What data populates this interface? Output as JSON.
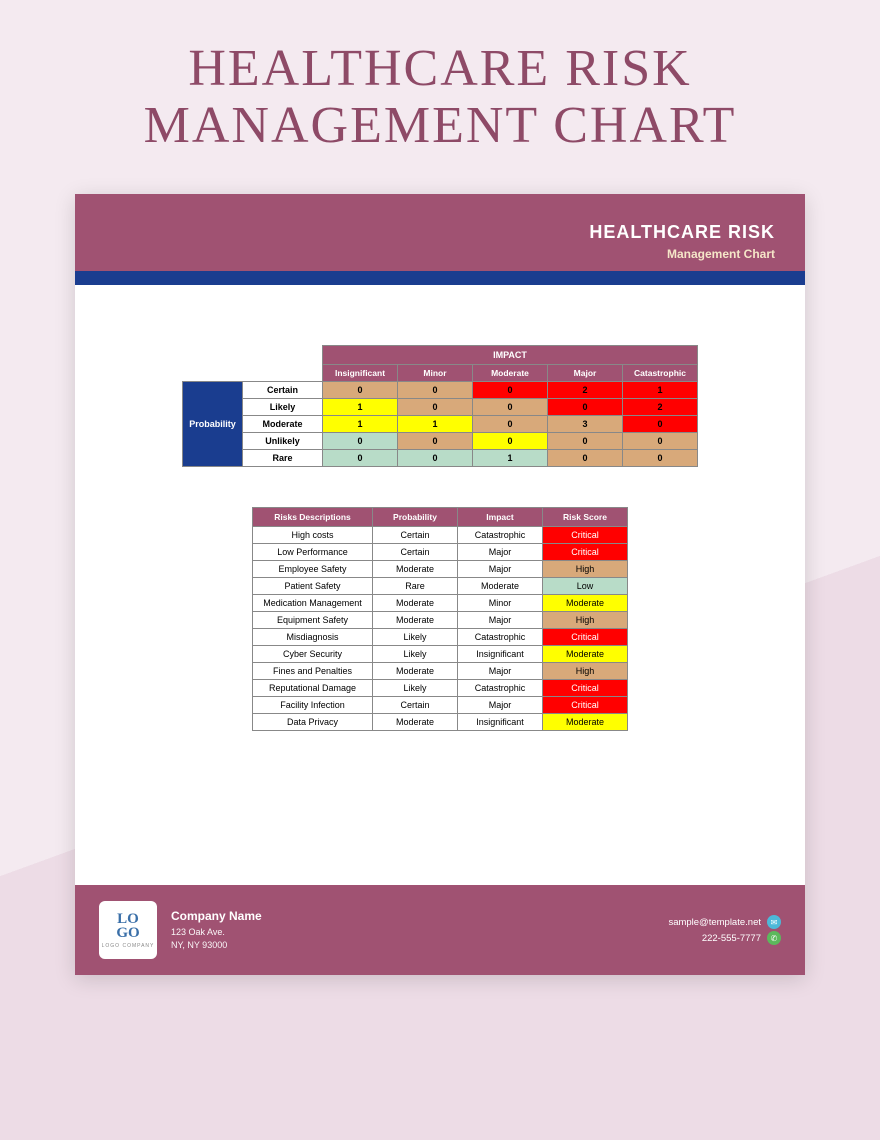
{
  "page": {
    "title": "HEALTHCARE RISK MANAGEMENT CHART"
  },
  "doc": {
    "header_title": "HEALTHCARE RISK",
    "header_subtitle": "Management Chart"
  },
  "colors": {
    "brand": "#a05272",
    "blue_bar": "#1a3d8f",
    "bg_light": "#f4eaf0",
    "bg_dark": "#eddce6"
  },
  "matrix": {
    "impact_label": "IMPACT",
    "probability_label": "Probability",
    "impact_columns": [
      "Insignificant",
      "Minor",
      "Moderate",
      "Major",
      "Catastrophic"
    ],
    "prob_rows": [
      "Certain",
      "Likely",
      "Moderate",
      "Unlikely",
      "Rare"
    ],
    "cells": [
      [
        {
          "v": "0",
          "c": "#d8a97a"
        },
        {
          "v": "0",
          "c": "#d8a97a"
        },
        {
          "v": "0",
          "c": "#ff0000"
        },
        {
          "v": "2",
          "c": "#ff0000"
        },
        {
          "v": "1",
          "c": "#ff0000"
        }
      ],
      [
        {
          "v": "1",
          "c": "#ffff00"
        },
        {
          "v": "0",
          "c": "#d8a97a"
        },
        {
          "v": "0",
          "c": "#d8a97a"
        },
        {
          "v": "0",
          "c": "#ff0000"
        },
        {
          "v": "2",
          "c": "#ff0000"
        }
      ],
      [
        {
          "v": "1",
          "c": "#ffff00"
        },
        {
          "v": "1",
          "c": "#ffff00"
        },
        {
          "v": "0",
          "c": "#d8a97a"
        },
        {
          "v": "3",
          "c": "#d8a97a"
        },
        {
          "v": "0",
          "c": "#ff0000"
        }
      ],
      [
        {
          "v": "0",
          "c": "#b8dcc8"
        },
        {
          "v": "0",
          "c": "#d8a97a"
        },
        {
          "v": "0",
          "c": "#ffff00"
        },
        {
          "v": "0",
          "c": "#d8a97a"
        },
        {
          "v": "0",
          "c": "#d8a97a"
        }
      ],
      [
        {
          "v": "0",
          "c": "#b8dcc8"
        },
        {
          "v": "0",
          "c": "#b8dcc8"
        },
        {
          "v": "1",
          "c": "#b8dcc8"
        },
        {
          "v": "0",
          "c": "#d8a97a"
        },
        {
          "v": "0",
          "c": "#d8a97a"
        }
      ]
    ]
  },
  "risks": {
    "headers": [
      "Risks Descriptions",
      "Probability",
      "Impact",
      "Risk Score"
    ],
    "rows": [
      {
        "desc": "High costs",
        "prob": "Certain",
        "impact": "Catastrophic",
        "score": "Critical",
        "color": "#ff0000",
        "tc": "#fff"
      },
      {
        "desc": "Low Performance",
        "prob": "Certain",
        "impact": "Major",
        "score": "Critical",
        "color": "#ff0000",
        "tc": "#fff"
      },
      {
        "desc": "Employee Safety",
        "prob": "Moderate",
        "impact": "Major",
        "score": "High",
        "color": "#d8a97a",
        "tc": "#000"
      },
      {
        "desc": "Patient Safety",
        "prob": "Rare",
        "impact": "Moderate",
        "score": "Low",
        "color": "#b8dcc8",
        "tc": "#000"
      },
      {
        "desc": "Medication Management",
        "prob": "Moderate",
        "impact": "Minor",
        "score": "Moderate",
        "color": "#ffff00",
        "tc": "#000"
      },
      {
        "desc": "Equipment Safety",
        "prob": "Moderate",
        "impact": "Major",
        "score": "High",
        "color": "#d8a97a",
        "tc": "#000"
      },
      {
        "desc": "Misdiagnosis",
        "prob": "Likely",
        "impact": "Catastrophic",
        "score": "Critical",
        "color": "#ff0000",
        "tc": "#fff"
      },
      {
        "desc": "Cyber Security",
        "prob": "Likely",
        "impact": "Insignificant",
        "score": "Moderate",
        "color": "#ffff00",
        "tc": "#000"
      },
      {
        "desc": "Fines and Penalties",
        "prob": "Moderate",
        "impact": "Major",
        "score": "High",
        "color": "#d8a97a",
        "tc": "#000"
      },
      {
        "desc": "Reputational Damage",
        "prob": "Likely",
        "impact": "Catastrophic",
        "score": "Critical",
        "color": "#ff0000",
        "tc": "#fff"
      },
      {
        "desc": "Facility Infection",
        "prob": "Certain",
        "impact": "Major",
        "score": "Critical",
        "color": "#ff0000",
        "tc": "#fff"
      },
      {
        "desc": "Data Privacy",
        "prob": "Moderate",
        "impact": "Insignificant",
        "score": "Moderate",
        "color": "#ffff00",
        "tc": "#000"
      }
    ]
  },
  "footer": {
    "logo_top": "LO",
    "logo_bottom": "GO",
    "logo_sub": "LOGO COMPANY",
    "company_name": "Company Name",
    "address_line1": "123 Oak Ave.",
    "address_line2": "NY, NY 93000",
    "email": "sample@template.net",
    "phone": "222-555-7777"
  }
}
